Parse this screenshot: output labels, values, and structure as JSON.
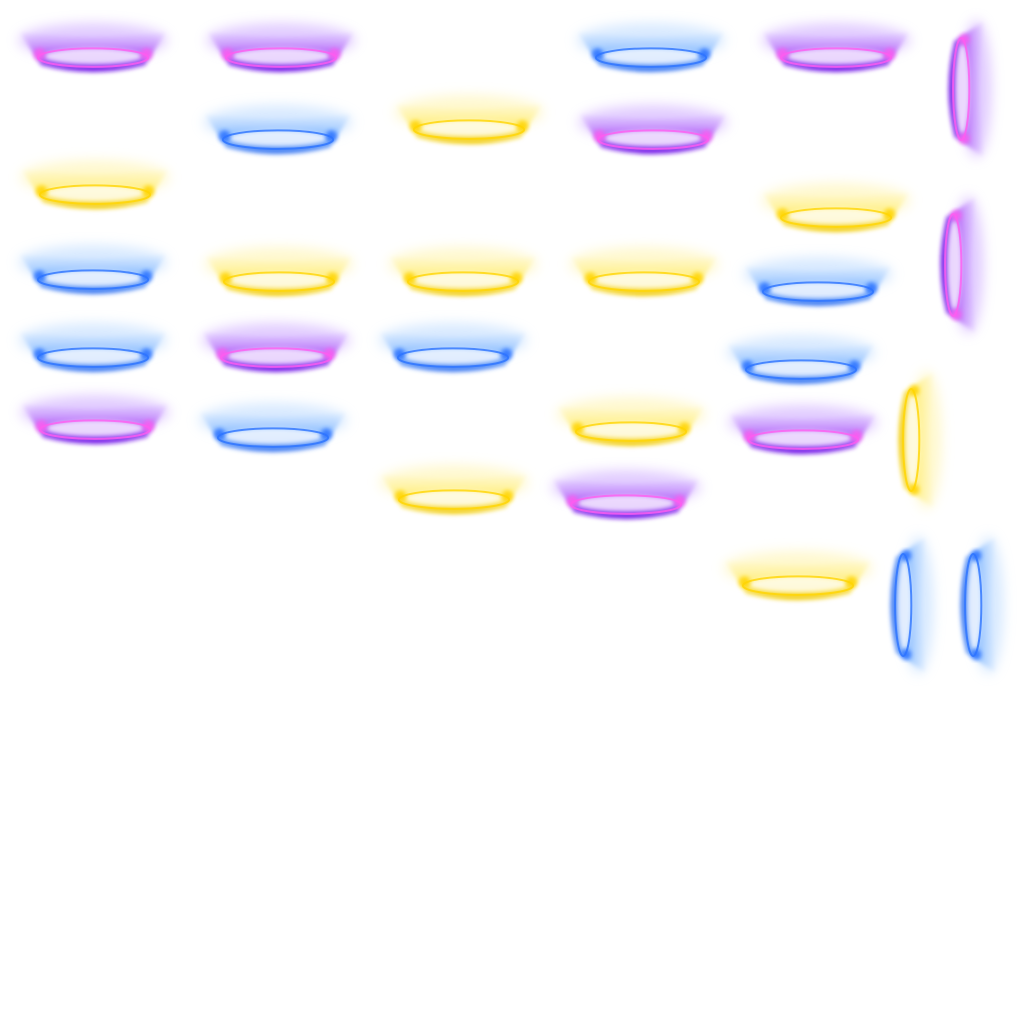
{
  "sheet": {
    "kind": "glow-portal sprite atlas",
    "background": "#ffffff",
    "palette": {
      "violet": {
        "haze": "#c9a2ff",
        "body": "#9a2cf5",
        "rim": "#6a10e6",
        "core": "#f6ecff",
        "spark": "#ff5cf0"
      },
      "blue": {
        "haze": "#b8d8ff",
        "body": "#5aa0ff",
        "rim": "#2f6ff0",
        "core": "#f3f8ff",
        "spark": "#2a72ff"
      },
      "yellow": {
        "haze": "#fff3a6",
        "body": "#ffe84a",
        "rim": "#f0c800",
        "core": "#fffdf0",
        "spark": "#ffd400"
      }
    },
    "sprites": [
      {
        "color": "violet",
        "orientation": "horizontal"
      },
      {
        "color": "violet",
        "orientation": "horizontal"
      },
      {
        "color": "blue",
        "orientation": "horizontal"
      },
      {
        "color": "violet",
        "orientation": "horizontal"
      },
      {
        "color": "violet",
        "orientation": "vertical"
      },
      {
        "color": "blue",
        "orientation": "horizontal"
      },
      {
        "color": "yellow",
        "orientation": "horizontal"
      },
      {
        "color": "violet",
        "orientation": "horizontal"
      },
      {
        "color": "yellow",
        "orientation": "horizontal"
      },
      {
        "color": "yellow",
        "orientation": "horizontal"
      },
      {
        "color": "violet",
        "orientation": "vertical"
      },
      {
        "color": "blue",
        "orientation": "horizontal"
      },
      {
        "color": "yellow",
        "orientation": "horizontal"
      },
      {
        "color": "yellow",
        "orientation": "horizontal"
      },
      {
        "color": "yellow",
        "orientation": "horizontal"
      },
      {
        "color": "blue",
        "orientation": "horizontal"
      },
      {
        "color": "blue",
        "orientation": "horizontal"
      },
      {
        "color": "violet",
        "orientation": "horizontal"
      },
      {
        "color": "blue",
        "orientation": "horizontal"
      },
      {
        "color": "blue",
        "orientation": "horizontal"
      },
      {
        "color": "yellow",
        "orientation": "vertical"
      },
      {
        "color": "violet",
        "orientation": "horizontal"
      },
      {
        "color": "blue",
        "orientation": "horizontal"
      },
      {
        "color": "yellow",
        "orientation": "horizontal"
      },
      {
        "color": "violet",
        "orientation": "horizontal"
      },
      {
        "color": "yellow",
        "orientation": "horizontal"
      },
      {
        "color": "violet",
        "orientation": "horizontal"
      },
      {
        "color": "yellow",
        "orientation": "horizontal"
      },
      {
        "color": "blue",
        "orientation": "vertical"
      },
      {
        "color": "blue",
        "orientation": "vertical"
      }
    ]
  }
}
